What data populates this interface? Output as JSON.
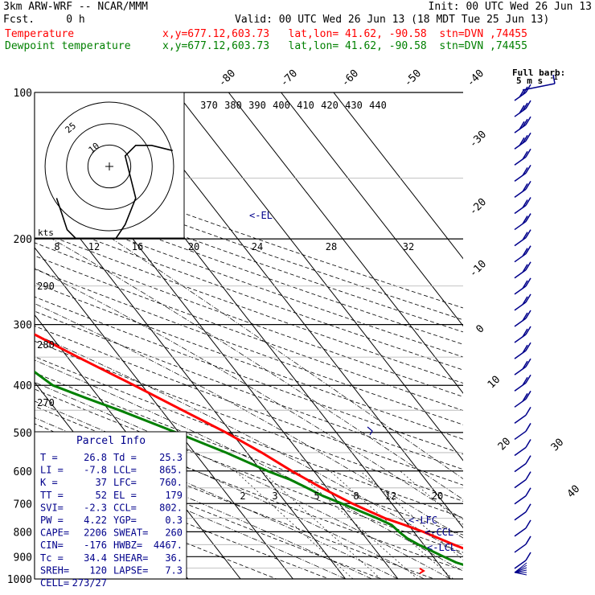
{
  "header": {
    "model": "3km ARW-WRF -- NCAR/MMM",
    "init": "Init: 00 UTC Wed 26 Jun 13",
    "fcst": "Fcst.     0 h",
    "valid": "Valid: 00 UTC Wed 26 Jun 13 (18 MDT Tue 25 Jun 13)",
    "temperature_line": {
      "name": "Temperature",
      "location": "x,y=677.12,603.73   lat,lon= 41.62, -90.58  stn=DVN ,74455",
      "color": "#ff0000"
    },
    "dewpoint_line": {
      "name": "Dewpoint temperature",
      "location": "x,y=677.12,603.73   lat,lon= 41.62, -90.58  stn=DVN ,74455",
      "color": "#008000"
    }
  },
  "wind_legend": {
    "title": "Full barb:",
    "value": "5 m s",
    "exponent": "-1"
  },
  "chart_data": {
    "type": "line",
    "yscale": "log",
    "ylim": [
      1000,
      100
    ],
    "pressure_labels": [
      "100",
      "200",
      "300",
      "400",
      "500",
      "600",
      "700",
      "800",
      "900",
      "1000"
    ],
    "isotherms_upper": [
      "-80",
      "-70",
      "-60",
      "-50",
      "-40"
    ],
    "isotherms_right": [
      "-30",
      "-20",
      "-10",
      "0",
      "10",
      "20",
      "30",
      "40"
    ],
    "theta_labels": [
      "370",
      "380",
      "390",
      "400",
      "410",
      "420",
      "430",
      "440"
    ],
    "theta_left": [
      "290",
      "280",
      "270"
    ],
    "hodograph": {
      "units": "kts",
      "ring_labels": [
        "25",
        "10"
      ],
      "speed_scale": [
        "8",
        "12",
        "16",
        "20",
        "24",
        "28",
        "32"
      ]
    },
    "mixing_ratio_labels": [
      "2",
      "3",
      "5",
      "8",
      "12",
      "20"
    ],
    "el_label": "<-EL",
    "lfc_label": "<-LFC",
    "ccl_label": "<-CCL",
    "lcl_label": "<-LCL",
    "series": [
      {
        "name": "Temperature",
        "color": "#ff0000",
        "points": [
          [
            1000,
            26.8
          ],
          [
            975,
            24.5
          ],
          [
            950,
            23.0
          ],
          [
            925,
            21.6
          ],
          [
            900,
            19.7
          ],
          [
            875,
            17.8
          ],
          [
            850,
            15.7
          ],
          [
            825,
            13.8
          ],
          [
            800,
            11.8
          ],
          [
            775,
            9.3
          ],
          [
            750,
            6.5
          ],
          [
            725,
            4.5
          ],
          [
            700,
            2.5
          ],
          [
            650,
            -1.0
          ],
          [
            600,
            -4.2
          ],
          [
            550,
            -7.2
          ],
          [
            500,
            -11.0
          ],
          [
            450,
            -16.0
          ],
          [
            400,
            -21.5
          ],
          [
            350,
            -28.0
          ],
          [
            300,
            -35.0
          ],
          [
            250,
            -43.0
          ],
          [
            225,
            -47.5
          ],
          [
            200,
            -52.5
          ],
          [
            175,
            -58.5
          ],
          [
            160,
            -62.5
          ],
          [
            150,
            -64.5
          ],
          [
            140,
            -64.0
          ],
          [
            130,
            -61.5
          ],
          [
            120,
            -59.0
          ],
          [
            110,
            -58.0
          ],
          [
            100,
            -57.5
          ]
        ]
      },
      {
        "name": "Dewpoint temperature",
        "color": "#008000",
        "points": [
          [
            1000,
            25.3
          ],
          [
            990,
            24.0
          ],
          [
            975,
            19.0
          ],
          [
            950,
            16.0
          ],
          [
            925,
            13.5
          ],
          [
            900,
            12.0
          ],
          [
            875,
            10.5
          ],
          [
            850,
            9.0
          ],
          [
            825,
            7.8
          ],
          [
            800,
            7.2
          ],
          [
            775,
            6.8
          ],
          [
            750,
            5.0
          ],
          [
            725,
            2.8
          ],
          [
            700,
            0.5
          ],
          [
            675,
            -2.0
          ],
          [
            650,
            -3.8
          ],
          [
            625,
            -5.8
          ],
          [
            600,
            -8.8
          ],
          [
            550,
            -14.0
          ],
          [
            500,
            -20.5
          ],
          [
            450,
            -28.0
          ],
          [
            425,
            -32.5
          ],
          [
            400,
            -37.0
          ],
          [
            375,
            -38.5
          ],
          [
            350,
            -38.5
          ],
          [
            325,
            -41.0
          ],
          [
            300,
            -45.5
          ],
          [
            275,
            -51.0
          ],
          [
            250,
            -57.0
          ],
          [
            225,
            -62.5
          ],
          [
            200,
            -68.0
          ],
          [
            175,
            -73.0
          ],
          [
            150,
            -78.0
          ],
          [
            125,
            -82.0
          ],
          [
            110,
            -84.5
          ],
          [
            100,
            -87.0
          ]
        ]
      }
    ],
    "hodo_trace": [
      [
        12,
        3
      ],
      [
        8,
        4
      ],
      [
        5,
        4
      ],
      [
        3,
        2
      ],
      [
        4,
        -2
      ],
      [
        5,
        -6
      ],
      [
        3,
        -11
      ],
      [
        1,
        -14
      ],
      [
        -2,
        -16
      ],
      [
        -4,
        -16
      ],
      [
        -6,
        -14
      ],
      [
        -8,
        -12
      ],
      [
        -9,
        -9
      ],
      [
        -10,
        -6
      ]
    ],
    "wind_barbs_count": 30
  },
  "parcel_info": {
    "title": "Parcel Info",
    "rows": [
      [
        "T  =",
        "26.8",
        "Td =",
        "25.3"
      ],
      [
        "LI =",
        "-7.8",
        "LCL=",
        "865."
      ],
      [
        "K  =",
        "37",
        "LFC=",
        "760."
      ],
      [
        "TT =",
        "52",
        "EL =",
        "179"
      ],
      [
        "SVI=",
        "-2.3",
        "CCL=",
        "802."
      ],
      [
        "PW =",
        "4.22",
        "YGP=",
        "0.3"
      ],
      [
        "CAPE=",
        "2206",
        "SWEAT=",
        "260"
      ],
      [
        "CIN=",
        "-176",
        "HWBZ=",
        "4467."
      ],
      [
        "Tc =",
        "34.4",
        "SHEAR=",
        "36."
      ],
      [
        "SREH=",
        "120",
        "LAPSE=",
        "7.3"
      ],
      [
        "CELL=",
        "273/27",
        "",
        ""
      ]
    ]
  }
}
